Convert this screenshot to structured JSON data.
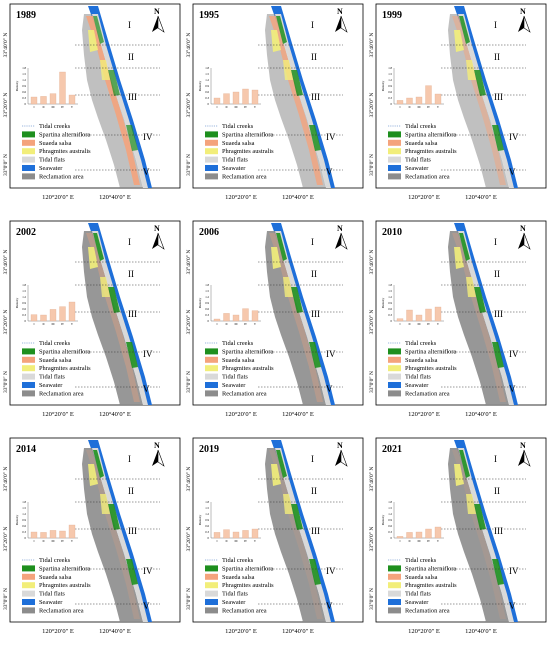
{
  "panels": [
    {
      "year": "1989",
      "density": [
        0.35,
        0.38,
        0.52,
        1.6,
        0.45
      ]
    },
    {
      "year": "1995",
      "density": [
        0.3,
        0.52,
        0.6,
        0.75,
        0.7
      ]
    },
    {
      "year": "1999",
      "density": [
        0.18,
        0.3,
        0.35,
        0.92,
        0.5
      ]
    },
    {
      "year": "2002",
      "density": [
        0.32,
        0.3,
        0.58,
        0.72,
        0.95
      ]
    },
    {
      "year": "2006",
      "density": [
        0.1,
        0.38,
        0.3,
        0.62,
        0.52
      ]
    },
    {
      "year": "2010",
      "density": [
        0.12,
        0.55,
        0.3,
        0.6,
        0.7
      ]
    },
    {
      "year": "2014",
      "density": [
        0.3,
        0.28,
        0.38,
        0.35,
        0.65
      ]
    },
    {
      "year": "2019",
      "density": [
        0.28,
        0.42,
        0.3,
        0.38,
        0.45
      ]
    },
    {
      "year": "2021",
      "density": [
        0.08,
        0.28,
        0.3,
        0.45,
        0.55
      ]
    }
  ],
  "zones": [
    "I",
    "II",
    "III",
    "IV",
    "V"
  ],
  "lat_labels": [
    "33°40′0″ N",
    "33°20′0″ N",
    "33°0′0″ N"
  ],
  "lon_labels": [
    "120°20′0″ E",
    "120°40′0″ E"
  ],
  "north_label": "N",
  "chart_ylabel": "Density",
  "chart_ticks": [
    "1.8",
    "1.5",
    "1.2",
    "0.9",
    "0.6",
    "0.3",
    "0"
  ],
  "chart_categories": [
    "I",
    "II",
    "III",
    "IV",
    "V"
  ],
  "legend": [
    {
      "label": "Tidal creeks",
      "color": "#7a9fd4",
      "kind": "line"
    },
    {
      "label": "Spartina alterniflora",
      "color": "#1e8f1e",
      "kind": "box"
    },
    {
      "label": "Suaeda salsa",
      "color": "#f4a37c",
      "kind": "box"
    },
    {
      "label": "Phragmites australis",
      "color": "#f2ee7a",
      "kind": "box"
    },
    {
      "label": "Tidal flats",
      "color": "#d9d9d9",
      "kind": "box"
    },
    {
      "label": "Seawater",
      "color": "#1e6fd9",
      "kind": "box"
    },
    {
      "label": "Reclamation area",
      "color": "#8c8c8c",
      "kind": "box"
    }
  ],
  "bar_color": "#f6c8ad"
}
